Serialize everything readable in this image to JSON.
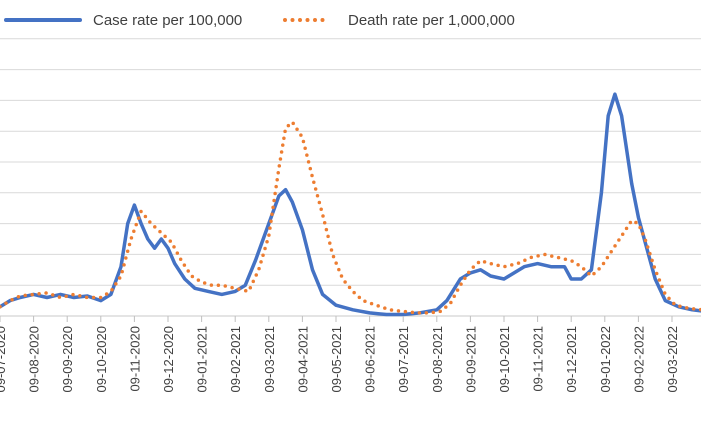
{
  "chart_data": {
    "type": "line",
    "title": "",
    "xlabel": "",
    "ylabel": "",
    "ylim": [
      0,
      10
    ],
    "grid": true,
    "legend_position": "top",
    "x_tick_labels": [
      "09-07-2020",
      "09-08-2020",
      "09-09-2020",
      "09-10-2020",
      "09-11-2020",
      "09-12-2020",
      "09-01-2021",
      "09-02-2021",
      "09-03-2021",
      "09-04-2021",
      "09-05-2021",
      "09-06-2021",
      "09-07-2021",
      "09-08-2021",
      "09-09-2021",
      "09-10-2021",
      "09-11-2021",
      "09-12-2021",
      "09-01-2022",
      "09-02-2022",
      "09-03-2022"
    ],
    "series": [
      {
        "name": "Case rate per 100,000",
        "color": "#4472C4",
        "style": "solid",
        "points": [
          [
            0,
            0.3
          ],
          [
            0.3,
            0.5
          ],
          [
            0.6,
            0.6
          ],
          [
            1.0,
            0.7
          ],
          [
            1.4,
            0.6
          ],
          [
            1.8,
            0.7
          ],
          [
            2.2,
            0.6
          ],
          [
            2.6,
            0.65
          ],
          [
            3.0,
            0.5
          ],
          [
            3.3,
            0.7
          ],
          [
            3.6,
            1.6
          ],
          [
            3.8,
            3.0
          ],
          [
            4.0,
            3.6
          ],
          [
            4.2,
            3.0
          ],
          [
            4.4,
            2.5
          ],
          [
            4.6,
            2.2
          ],
          [
            4.8,
            2.5
          ],
          [
            5.0,
            2.2
          ],
          [
            5.2,
            1.7
          ],
          [
            5.5,
            1.2
          ],
          [
            5.8,
            0.9
          ],
          [
            6.2,
            0.8
          ],
          [
            6.6,
            0.7
          ],
          [
            7.0,
            0.8
          ],
          [
            7.3,
            1.0
          ],
          [
            7.6,
            1.8
          ],
          [
            8.0,
            3.0
          ],
          [
            8.3,
            3.9
          ],
          [
            8.5,
            4.1
          ],
          [
            8.7,
            3.7
          ],
          [
            9.0,
            2.8
          ],
          [
            9.3,
            1.5
          ],
          [
            9.6,
            0.7
          ],
          [
            10.0,
            0.35
          ],
          [
            10.5,
            0.2
          ],
          [
            11.0,
            0.1
          ],
          [
            11.5,
            0.05
          ],
          [
            12.0,
            0.05
          ],
          [
            12.5,
            0.1
          ],
          [
            13.0,
            0.2
          ],
          [
            13.3,
            0.5
          ],
          [
            13.7,
            1.2
          ],
          [
            14.0,
            1.4
          ],
          [
            14.3,
            1.5
          ],
          [
            14.6,
            1.3
          ],
          [
            15.0,
            1.2
          ],
          [
            15.3,
            1.4
          ],
          [
            15.6,
            1.6
          ],
          [
            16.0,
            1.7
          ],
          [
            16.4,
            1.6
          ],
          [
            16.8,
            1.6
          ],
          [
            17.0,
            1.2
          ],
          [
            17.3,
            1.2
          ],
          [
            17.6,
            1.5
          ],
          [
            17.9,
            4.0
          ],
          [
            18.1,
            6.5
          ],
          [
            18.3,
            7.2
          ],
          [
            18.5,
            6.5
          ],
          [
            18.8,
            4.3
          ],
          [
            19.0,
            3.2
          ],
          [
            19.2,
            2.4
          ],
          [
            19.5,
            1.2
          ],
          [
            19.8,
            0.5
          ],
          [
            20.2,
            0.3
          ],
          [
            20.6,
            0.2
          ],
          [
            21.0,
            0.15
          ],
          [
            21.4,
            0.1
          ]
        ]
      },
      {
        "name": "Death rate per 1,000,000",
        "color": "#ED7D31",
        "style": "dotted",
        "points": [
          [
            0,
            0.3
          ],
          [
            0.3,
            0.5
          ],
          [
            0.6,
            0.65
          ],
          [
            1.0,
            0.7
          ],
          [
            1.4,
            0.75
          ],
          [
            1.8,
            0.6
          ],
          [
            2.2,
            0.7
          ],
          [
            2.6,
            0.6
          ],
          [
            3.0,
            0.6
          ],
          [
            3.3,
            0.8
          ],
          [
            3.6,
            1.3
          ],
          [
            3.9,
            2.5
          ],
          [
            4.2,
            3.4
          ],
          [
            4.5,
            3.0
          ],
          [
            4.8,
            2.7
          ],
          [
            5.1,
            2.4
          ],
          [
            5.4,
            1.8
          ],
          [
            5.7,
            1.3
          ],
          [
            6.0,
            1.1
          ],
          [
            6.3,
            1.0
          ],
          [
            6.6,
            1.0
          ],
          [
            7.0,
            0.9
          ],
          [
            7.4,
            0.8
          ],
          [
            7.7,
            1.5
          ],
          [
            8.0,
            2.6
          ],
          [
            8.3,
            4.8
          ],
          [
            8.5,
            6.1
          ],
          [
            8.7,
            6.3
          ],
          [
            9.0,
            5.8
          ],
          [
            9.3,
            4.5
          ],
          [
            9.6,
            3.3
          ],
          [
            9.9,
            2.0
          ],
          [
            10.2,
            1.2
          ],
          [
            10.5,
            0.8
          ],
          [
            10.8,
            0.5
          ],
          [
            11.2,
            0.35
          ],
          [
            11.6,
            0.2
          ],
          [
            12.0,
            0.15
          ],
          [
            12.4,
            0.1
          ],
          [
            12.8,
            0.1
          ],
          [
            13.1,
            0.15
          ],
          [
            13.4,
            0.4
          ],
          [
            13.7,
            1.0
          ],
          [
            14.0,
            1.5
          ],
          [
            14.3,
            1.8
          ],
          [
            14.6,
            1.7
          ],
          [
            15.0,
            1.6
          ],
          [
            15.4,
            1.7
          ],
          [
            15.8,
            1.9
          ],
          [
            16.2,
            2.0
          ],
          [
            16.6,
            1.9
          ],
          [
            17.0,
            1.8
          ],
          [
            17.3,
            1.6
          ],
          [
            17.6,
            1.3
          ],
          [
            17.9,
            1.6
          ],
          [
            18.2,
            2.1
          ],
          [
            18.5,
            2.6
          ],
          [
            18.8,
            3.1
          ],
          [
            19.0,
            3.0
          ],
          [
            19.2,
            2.5
          ],
          [
            19.5,
            1.5
          ],
          [
            19.8,
            0.7
          ],
          [
            20.1,
            0.35
          ],
          [
            20.5,
            0.25
          ],
          [
            20.9,
            0.2
          ],
          [
            21.4,
            0.15
          ]
        ]
      }
    ]
  }
}
